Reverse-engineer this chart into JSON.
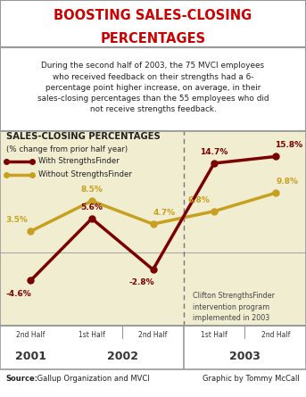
{
  "title_line1": "BOOSTING SALES-CLOSING",
  "title_line2": "PERCENTAGES",
  "subtitle": "During the second half of 2003, the 75 MVCI employees\nwho received feedback on their strengths had a 6-\npercentage point higher increase, on average, in their\nsales-closing percentages than the 55 employees who did\nnot receive strengths feedback.",
  "chart_title_line1": "SALES-CLOSING PERCENTAGES",
  "chart_title_line2": "(% change from prior half year)",
  "legend_with": "With StrengthsFinder",
  "legend_without": "Without StrengthsFinder",
  "with_values": [
    -4.6,
    5.6,
    -2.8,
    14.7,
    15.8
  ],
  "without_values": [
    3.5,
    8.5,
    4.7,
    6.8,
    9.8
  ],
  "with_color": "#7B0000",
  "without_color": "#C8A020",
  "bg_color_top": "#FFFFFF",
  "bg_color_chart": "#F0EDD0",
  "annotation_text": "Clifton StrengthsFinder\nintervention program\nimplemented in 2003",
  "source_bold": "Source:",
  "source_rest": " Gallup Organization and MVCI",
  "graphic_text": "Graphic by Tommy McCall",
  "title_color": "#CC0000",
  "border_color": "#999999",
  "x_positions": [
    0,
    1,
    2,
    3,
    4
  ]
}
